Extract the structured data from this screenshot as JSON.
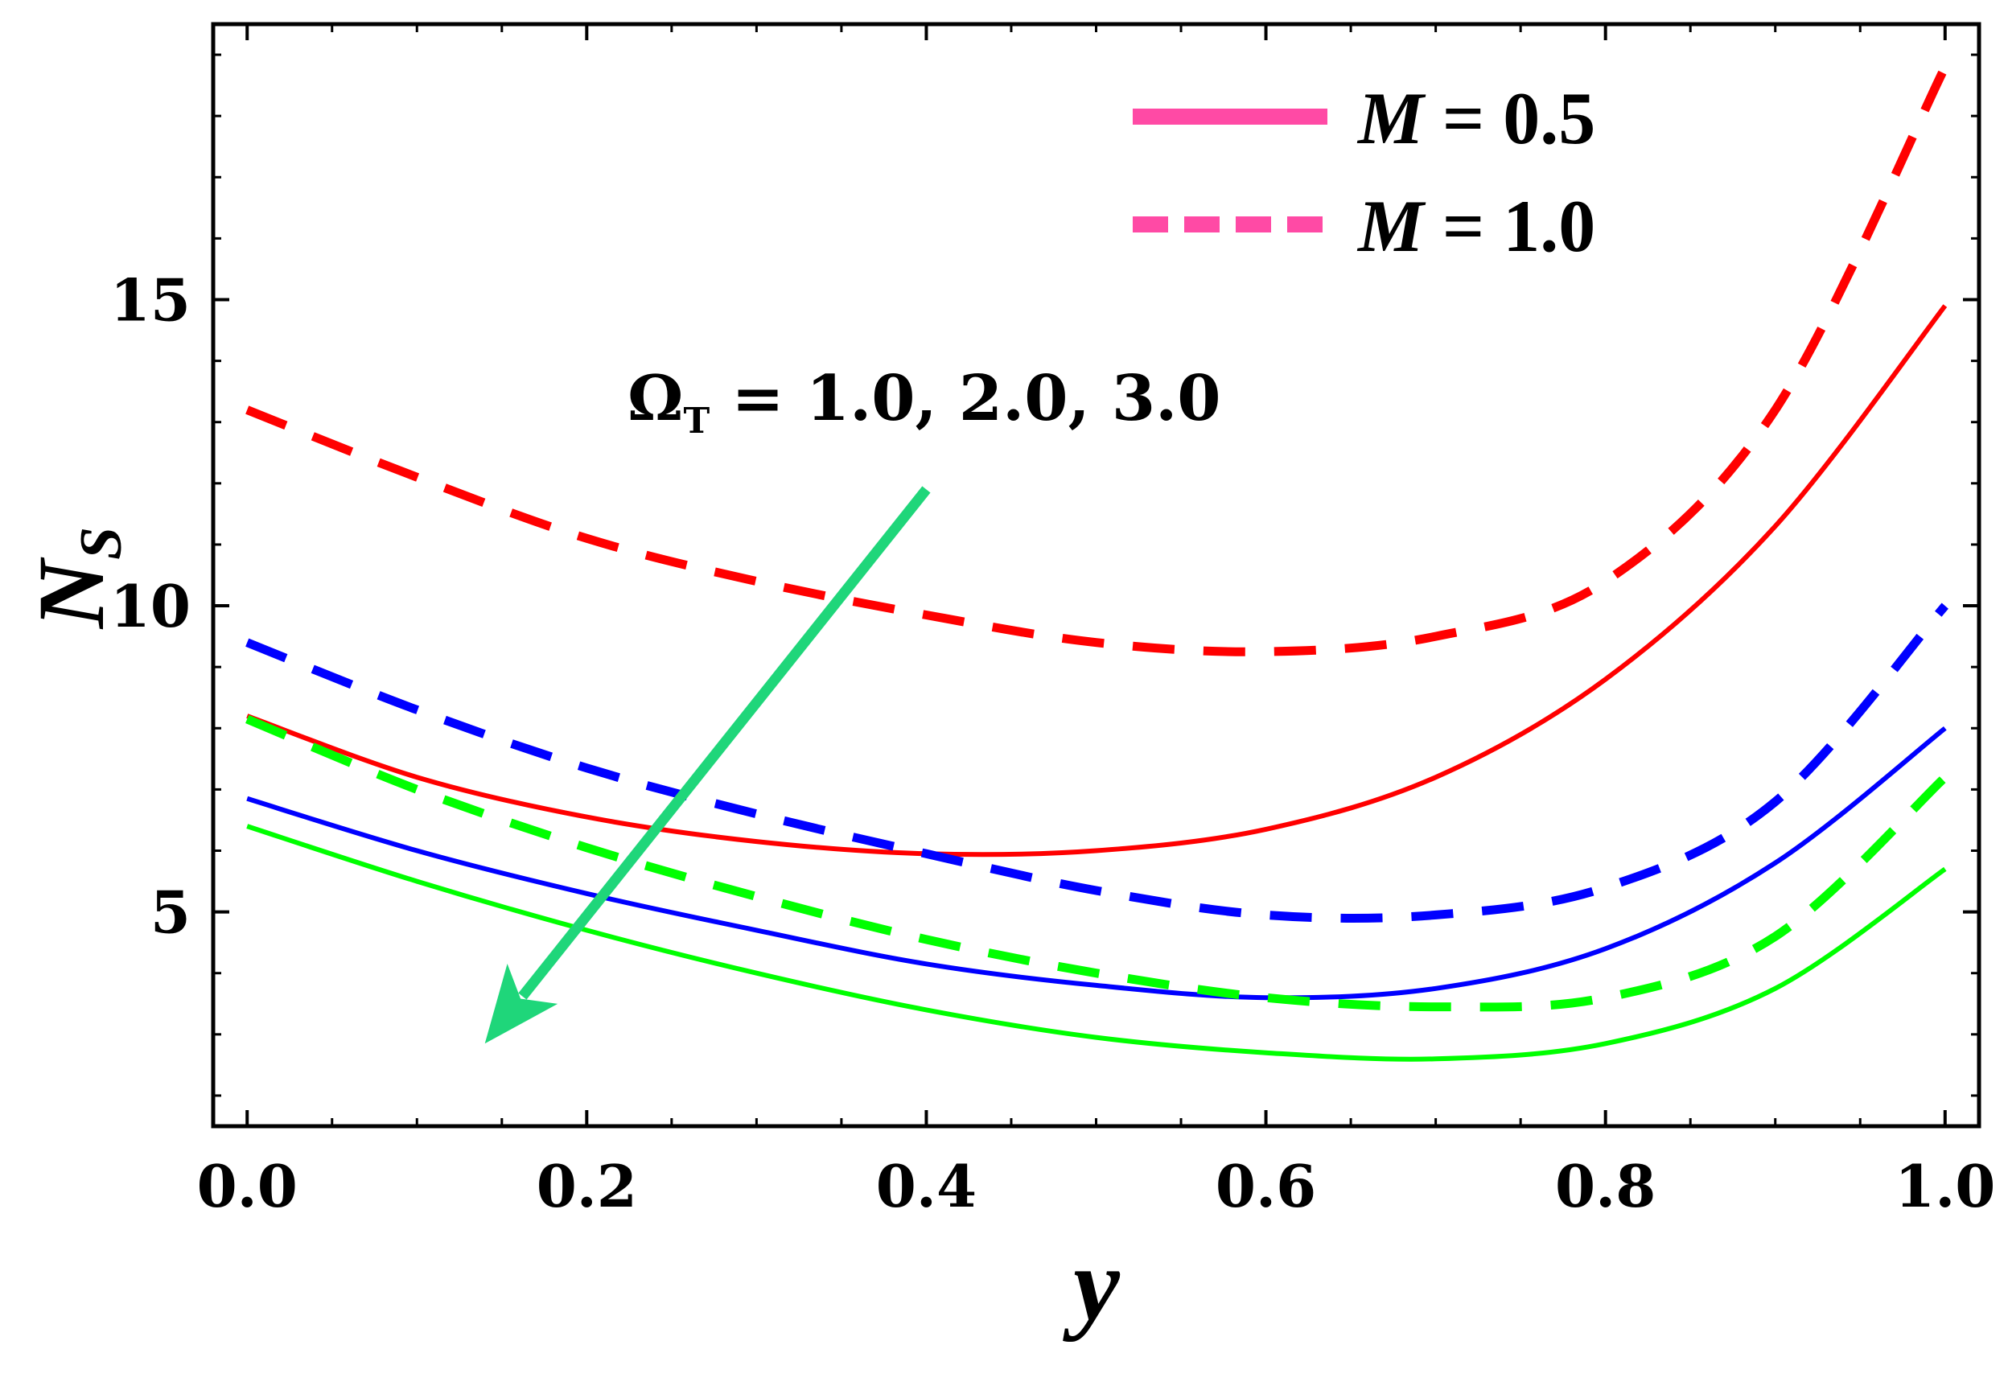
{
  "chart_data": {
    "type": "line",
    "title": "",
    "xlabel": "y",
    "ylabel_main": "N",
    "ylabel_sub": "S",
    "xlim": [
      -0.02,
      1.02
    ],
    "ylim": [
      1.5,
      19.5
    ],
    "xticks": [
      0.0,
      0.2,
      0.4,
      0.6,
      0.8,
      1.0
    ],
    "xtick_labels": [
      "0.0",
      "0.2",
      "0.4",
      "0.6",
      "0.8",
      "1.0"
    ],
    "yticks": [
      5,
      10,
      15
    ],
    "ytick_labels": [
      "5",
      "10",
      "15"
    ],
    "x": [
      0.0,
      0.1,
      0.2,
      0.3,
      0.4,
      0.5,
      0.6,
      0.7,
      0.8,
      0.9,
      1.0
    ],
    "series": [
      {
        "name": "M = 0.5, Ω_T = 1.0",
        "color": "#ff0000",
        "style": "solid",
        "values": [
          8.2,
          7.2,
          6.55,
          6.15,
          5.95,
          6.0,
          6.35,
          7.2,
          8.8,
          11.3,
          14.9
        ]
      },
      {
        "name": "M = 0.5, Ω_T = 2.0",
        "color": "#0000ff",
        "style": "solid",
        "values": [
          6.85,
          6.0,
          5.3,
          4.7,
          4.15,
          3.8,
          3.6,
          3.75,
          4.4,
          5.8,
          8.0
        ]
      },
      {
        "name": "M = 0.5, Ω_T = 3.0",
        "color": "#00ff00",
        "style": "solid",
        "values": [
          6.4,
          5.5,
          4.7,
          4.0,
          3.4,
          2.95,
          2.7,
          2.6,
          2.85,
          3.75,
          5.7
        ]
      },
      {
        "name": "M = 1.0, Ω_T = 1.0",
        "color": "#ff0000",
        "style": "dashed",
        "values": [
          13.2,
          12.1,
          11.1,
          10.4,
          9.85,
          9.4,
          9.25,
          9.5,
          10.4,
          13.2,
          18.8
        ]
      },
      {
        "name": "M = 1.0, Ω_T = 2.0",
        "color": "#0000ff",
        "style": "dashed",
        "values": [
          9.4,
          8.3,
          7.35,
          6.6,
          5.95,
          5.35,
          4.95,
          4.95,
          5.4,
          6.8,
          10.0
        ]
      },
      {
        "name": "M = 1.0, Ω_T = 3.0",
        "color": "#00ff00",
        "style": "dashed",
        "values": [
          8.15,
          7.0,
          6.05,
          5.25,
          4.55,
          4.0,
          3.6,
          3.45,
          3.6,
          4.6,
          7.2
        ]
      }
    ],
    "legend": {
      "position": "top-right",
      "color": "#ff4aa5",
      "entries": [
        {
          "symbol": "M",
          "text": " =  0.5",
          "style": "solid"
        },
        {
          "symbol": "M",
          "text": " =  1.0",
          "style": "dashed"
        }
      ]
    },
    "annotation": {
      "symbol": "Ω",
      "subscript": "T",
      "text": " = 1.0, 2.0, 3.0",
      "arrow_color": "#1fd67a",
      "arrow_from": [
        0.4,
        11.9
      ],
      "arrow_to": [
        0.14,
        2.85
      ]
    }
  }
}
